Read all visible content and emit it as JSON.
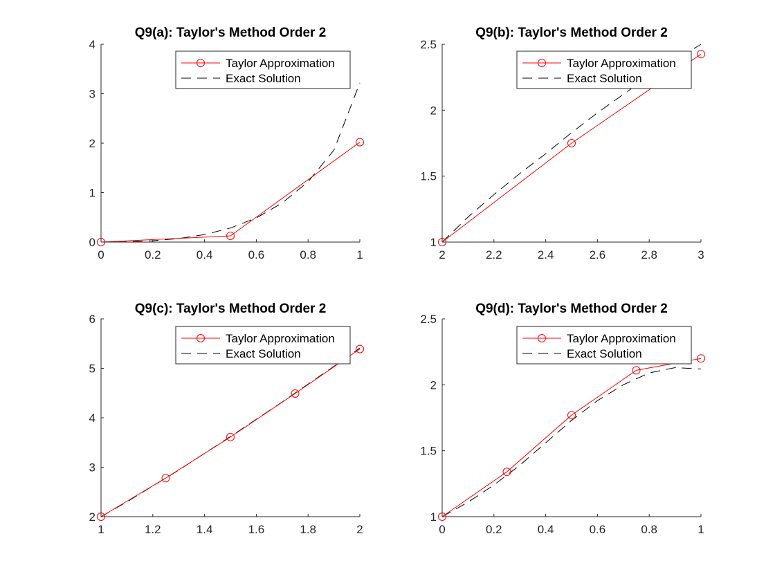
{
  "colors": {
    "approx": "#ff0000",
    "exact": "#000000",
    "axis": "#262626",
    "background": "#ffffff"
  },
  "chart_data": [
    {
      "type": "line",
      "title": "Q9(a): Taylor's Method Order 2",
      "xlim": [
        0,
        1
      ],
      "ylim": [
        0,
        4
      ],
      "xticks": [
        0,
        0.2,
        0.4,
        0.6,
        0.8,
        1
      ],
      "xtick_labels": [
        "0",
        "0.2",
        "0.4",
        "0.6",
        "0.8",
        "1"
      ],
      "yticks": [
        0,
        1,
        2,
        3,
        4
      ],
      "ytick_labels": [
        "0",
        "1",
        "2",
        "3",
        "4"
      ],
      "legend": "top-right",
      "grid": false,
      "series": [
        {
          "name": "Taylor Approximation",
          "style": "red-solid-circle",
          "x": [
            0,
            0.5,
            1
          ],
          "y": [
            0,
            0.125,
            2.02
          ]
        },
        {
          "name": "Exact Solution",
          "style": "black-dashed",
          "x": [
            0,
            0.1,
            0.2,
            0.3,
            0.4,
            0.5,
            0.6,
            0.7,
            0.8,
            0.9,
            1
          ],
          "y": [
            0,
            0.006,
            0.027,
            0.071,
            0.152,
            0.284,
            0.489,
            0.79,
            1.22,
            1.86,
            3.22
          ]
        }
      ]
    },
    {
      "type": "line",
      "title": "Q9(b): Taylor's Method Order 2",
      "xlim": [
        2,
        3
      ],
      "ylim": [
        1,
        2.5
      ],
      "xticks": [
        2,
        2.2,
        2.4,
        2.6,
        2.8,
        3
      ],
      "xtick_labels": [
        "2",
        "2.2",
        "2.4",
        "2.6",
        "2.8",
        "3"
      ],
      "yticks": [
        1,
        1.5,
        2,
        2.5
      ],
      "ytick_labels": [
        "1",
        "1.5",
        "2",
        "2.5"
      ],
      "legend": "top-right",
      "grid": false,
      "series": [
        {
          "name": "Taylor Approximation",
          "style": "red-solid-circle",
          "x": [
            2,
            2.5,
            3
          ],
          "y": [
            1,
            1.75,
            2.425
          ]
        },
        {
          "name": "Exact Solution",
          "style": "black-dashed",
          "x": [
            2,
            2.1,
            2.2,
            2.3,
            2.4,
            2.5,
            2.6,
            2.7,
            2.8,
            2.9,
            3
          ],
          "y": [
            1,
            1.19,
            1.36,
            1.52,
            1.67,
            1.83,
            1.98,
            2.12,
            2.26,
            2.38,
            2.5
          ]
        }
      ]
    },
    {
      "type": "line",
      "title": "Q9(c): Taylor's Method Order 2",
      "xlim": [
        1,
        2
      ],
      "ylim": [
        2,
        6
      ],
      "xticks": [
        1,
        1.2,
        1.4,
        1.6,
        1.8,
        2
      ],
      "xtick_labels": [
        "1",
        "1.2",
        "1.4",
        "1.6",
        "1.8",
        "2"
      ],
      "yticks": [
        2,
        3,
        4,
        5,
        6
      ],
      "ytick_labels": [
        "2",
        "3",
        "4",
        "5",
        "6"
      ],
      "legend": "top-right",
      "grid": false,
      "series": [
        {
          "name": "Taylor Approximation",
          "style": "red-solid-circle",
          "x": [
            1,
            1.25,
            1.5,
            1.75,
            2
          ],
          "y": [
            2,
            2.78,
            3.61,
            4.49,
            5.39
          ]
        },
        {
          "name": "Exact Solution",
          "style": "black-dashed",
          "x": [
            1,
            1.1,
            1.2,
            1.3,
            1.4,
            1.5,
            1.6,
            1.7,
            1.8,
            1.9,
            2
          ],
          "y": [
            2,
            2.3,
            2.62,
            2.94,
            3.28,
            3.62,
            3.97,
            4.32,
            4.68,
            5.04,
            5.41
          ]
        }
      ]
    },
    {
      "type": "line",
      "title": "Q9(d): Taylor's Method Order 2",
      "xlim": [
        0,
        1
      ],
      "ylim": [
        1,
        2.5
      ],
      "xticks": [
        0,
        0.2,
        0.4,
        0.6,
        0.8,
        1
      ],
      "xtick_labels": [
        "0",
        "0.2",
        "0.4",
        "0.6",
        "0.8",
        "1"
      ],
      "yticks": [
        1,
        1.5,
        2,
        2.5
      ],
      "ytick_labels": [
        "1",
        "1.5",
        "2",
        "2.5"
      ],
      "legend": "top-right",
      "grid": false,
      "series": [
        {
          "name": "Taylor Approximation",
          "style": "red-solid-circle",
          "x": [
            0,
            0.25,
            0.5,
            0.75,
            1
          ],
          "y": [
            1,
            1.34,
            1.77,
            2.11,
            2.2
          ]
        },
        {
          "name": "Exact Solution",
          "style": "black-dashed",
          "x": [
            0,
            0.1,
            0.2,
            0.3,
            0.4,
            0.5,
            0.6,
            0.7,
            0.8,
            0.9,
            1
          ],
          "y": [
            1,
            1.11,
            1.24,
            1.39,
            1.56,
            1.73,
            1.88,
            2.0,
            2.09,
            2.13,
            2.12
          ]
        }
      ]
    }
  ]
}
